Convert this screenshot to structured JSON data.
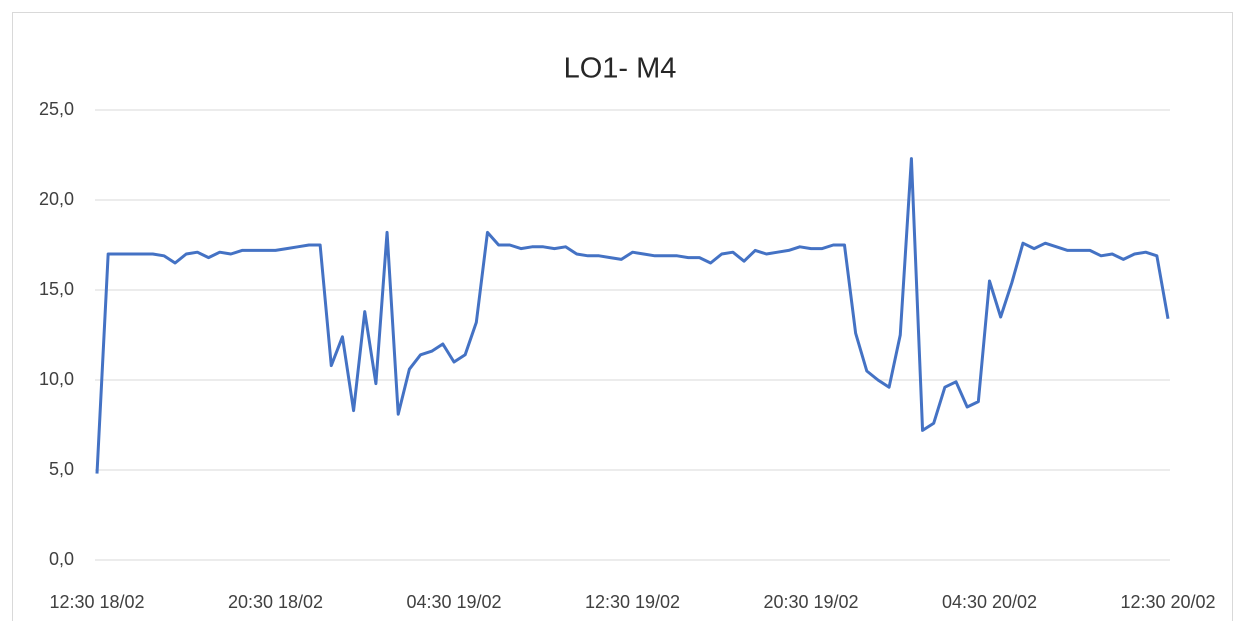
{
  "chart_data": {
    "type": "line",
    "title": "LO1- M4",
    "categories": [
      "12:30 18/02",
      null,
      null,
      null,
      null,
      null,
      null,
      null,
      null,
      null,
      null,
      null,
      null,
      null,
      null,
      null,
      "20:30 18/02",
      null,
      null,
      null,
      null,
      null,
      null,
      null,
      null,
      null,
      null,
      null,
      null,
      null,
      null,
      null,
      "04:30 19/02",
      null,
      null,
      null,
      null,
      null,
      null,
      null,
      null,
      null,
      null,
      null,
      null,
      null,
      null,
      null,
      "12:30 19/02",
      null,
      null,
      null,
      null,
      null,
      null,
      null,
      null,
      null,
      null,
      null,
      null,
      null,
      null,
      null,
      "20:30 19/02",
      null,
      null,
      null,
      null,
      null,
      null,
      null,
      null,
      null,
      null,
      null,
      null,
      null,
      null,
      null,
      "04:30 20/02",
      null,
      null,
      null,
      null,
      null,
      null,
      null,
      null,
      null,
      null,
      null,
      null,
      null,
      null,
      null,
      "12:30 20/02"
    ],
    "series": [
      {
        "name": "LO1- M4",
        "color": "#4472c4",
        "values": [
          4.8,
          17.0,
          17.0,
          17.0,
          17.0,
          17.0,
          16.9,
          16.5,
          17.0,
          17.1,
          16.8,
          17.1,
          17.0,
          17.2,
          17.2,
          17.2,
          17.2,
          17.3,
          17.4,
          17.5,
          17.5,
          10.8,
          12.4,
          8.3,
          13.8,
          9.8,
          18.2,
          8.1,
          10.6,
          11.4,
          11.6,
          12.0,
          11.0,
          11.4,
          13.2,
          18.2,
          17.5,
          17.5,
          17.3,
          17.4,
          17.4,
          17.3,
          17.4,
          17.0,
          16.9,
          16.9,
          16.8,
          16.7,
          17.1,
          17.0,
          16.9,
          16.9,
          16.9,
          16.8,
          16.8,
          16.5,
          17.0,
          17.1,
          16.6,
          17.2,
          17.0,
          17.1,
          17.2,
          17.4,
          17.3,
          17.3,
          17.5,
          17.5,
          12.6,
          10.5,
          10.0,
          9.6,
          12.5,
          22.3,
          7.2,
          7.6,
          9.6,
          9.9,
          8.5,
          8.8,
          15.5,
          13.5,
          15.4,
          17.6,
          17.3,
          17.6,
          17.4,
          17.2,
          17.2,
          17.2,
          16.9,
          17.0,
          16.7,
          17.0,
          17.1,
          16.9,
          13.4
        ]
      }
    ],
    "ylim": [
      0,
      25
    ],
    "yticks": [
      {
        "value": 0,
        "label": "0,0"
      },
      {
        "value": 5,
        "label": "5,0"
      },
      {
        "value": 10,
        "label": "10,0"
      },
      {
        "value": 15,
        "label": "15,0"
      },
      {
        "value": 20,
        "label": "20,0"
      },
      {
        "value": 25,
        "label": "25,0"
      }
    ],
    "grid": true
  }
}
